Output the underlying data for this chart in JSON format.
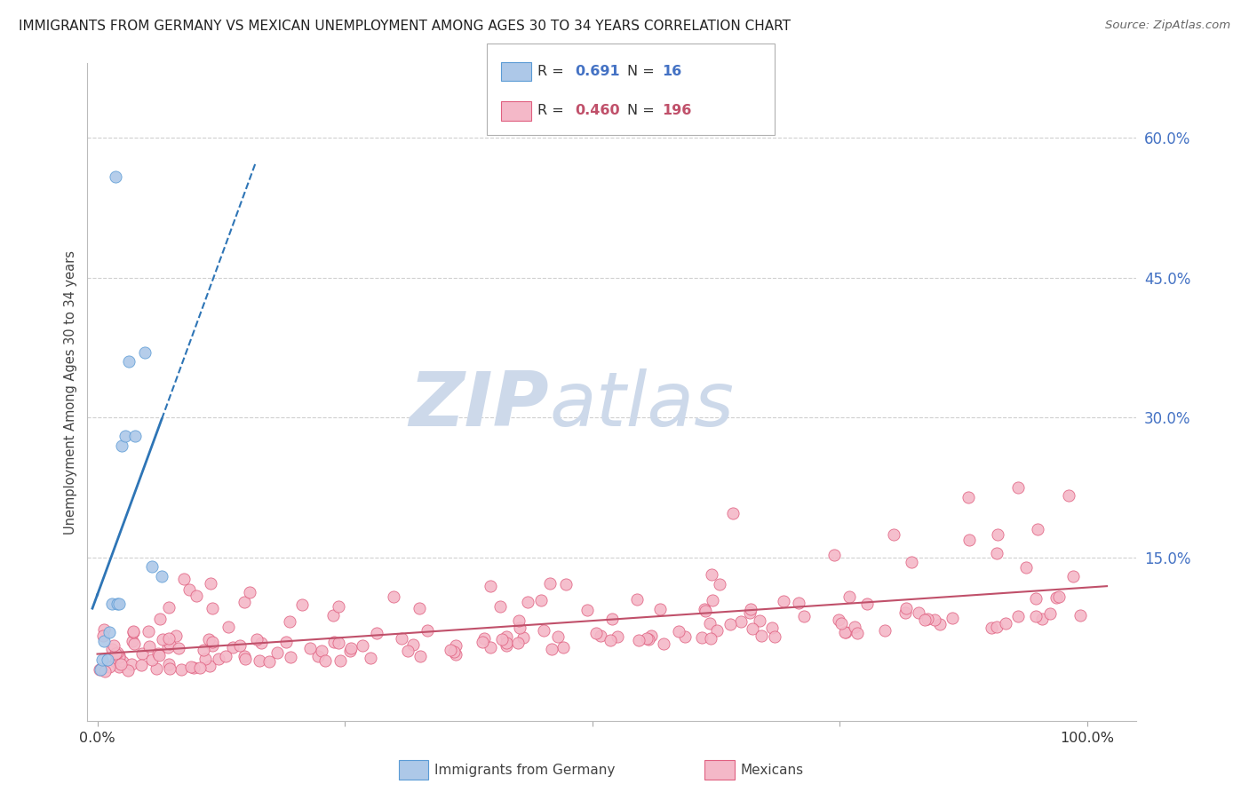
{
  "title": "IMMIGRANTS FROM GERMANY VS MEXICAN UNEMPLOYMENT AMONG AGES 30 TO 34 YEARS CORRELATION CHART",
  "source": "Source: ZipAtlas.com",
  "ylabel": "Unemployment Among Ages 30 to 34 years",
  "ytick_values": [
    0.15,
    0.3,
    0.45,
    0.6
  ],
  "ytick_labels": [
    "15.0%",
    "30.0%",
    "45.0%",
    "60.0%"
  ],
  "xlim": [
    -0.01,
    1.05
  ],
  "ylim": [
    -0.025,
    0.68
  ],
  "r_germany": 0.691,
  "n_germany": 16,
  "r_mexico": 0.46,
  "n_mexico": 196,
  "germany_fill_color": "#adc8e8",
  "germany_edge_color": "#5b9bd5",
  "germany_line_color": "#2e75b6",
  "mexico_fill_color": "#f4b8c8",
  "mexico_edge_color": "#e06080",
  "mexico_line_color": "#c0506a",
  "background_color": "#ffffff",
  "grid_color": "#d0d0d0",
  "title_color": "#222222",
  "axis_label_color": "#444444",
  "ytick_color": "#4472c4",
  "legend_r1_color": "#4472c4",
  "legend_r2_color": "#c0506a",
  "legend_box_edge": "#b0b0b0",
  "source_color": "#666666",
  "watermark_zip_color": "#c8d8ec",
  "watermark_atlas_color": "#c8d8ec"
}
